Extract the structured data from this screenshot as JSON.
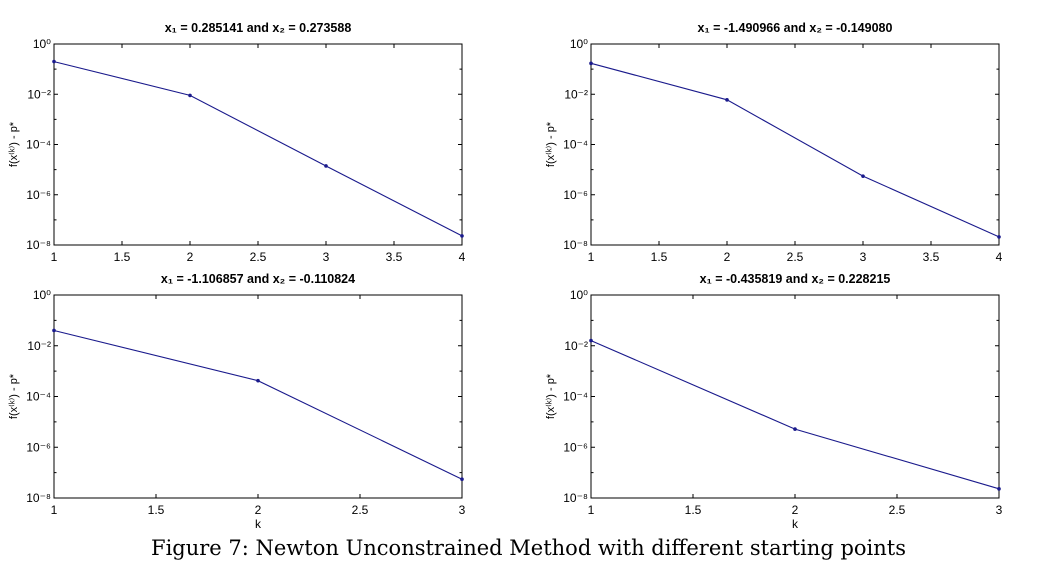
{
  "figure": {
    "caption": "Figure 7: Newton Unconstrained Method with different starting points"
  },
  "chart_data": [
    {
      "type": "line",
      "title": "x₁ = 0.285141 and x₂ = 0.273588",
      "xlabel": "",
      "ylabel": "f(x⁽ᵏ⁾) - p*",
      "yscale": "log",
      "xlim": [
        1,
        4
      ],
      "ylim": [
        1e-08,
        1
      ],
      "xticks": [
        "1",
        "1.5",
        "2",
        "2.5",
        "3",
        "3.5",
        "4"
      ],
      "yticks": [
        "10⁰",
        "10⁻²",
        "10⁻⁴",
        "10⁻⁶",
        "10⁻⁸"
      ],
      "color": "#1a1a8c",
      "x": [
        1,
        2,
        3,
        4
      ],
      "y": [
        0.2,
        0.009,
        1.4e-05,
        2.3e-08
      ]
    },
    {
      "type": "line",
      "title": "x₁ = -1.490966 and x₂ = -0.149080",
      "xlabel": "",
      "ylabel": "f(x⁽ᵏ⁾) - p*",
      "yscale": "log",
      "xlim": [
        1,
        4
      ],
      "ylim": [
        1e-08,
        1
      ],
      "xticks": [
        "1",
        "1.5",
        "2",
        "2.5",
        "3",
        "3.5",
        "4"
      ],
      "yticks": [
        "10⁰",
        "10⁻²",
        "10⁻⁴",
        "10⁻⁶",
        "10⁻⁸"
      ],
      "color": "#1a1a8c",
      "x": [
        1,
        2,
        3,
        4
      ],
      "y": [
        0.17,
        0.006,
        5.5e-06,
        2.1e-08
      ]
    },
    {
      "type": "line",
      "title": "x₁ = -1.106857 and x₂ = -0.110824",
      "xlabel": "k",
      "ylabel": "f(x⁽ᵏ⁾) - p*",
      "yscale": "log",
      "xlim": [
        1,
        3
      ],
      "ylim": [
        1e-08,
        1
      ],
      "xticks": [
        "1",
        "1.5",
        "2",
        "2.5",
        "3"
      ],
      "yticks": [
        "10⁰",
        "10⁻²",
        "10⁻⁴",
        "10⁻⁶",
        "10⁻⁸"
      ],
      "color": "#1a1a8c",
      "x": [
        1,
        2,
        3
      ],
      "y": [
        0.04,
        0.00042,
        5.5e-08
      ]
    },
    {
      "type": "line",
      "title": "x₁ = -0.435819 and x₂ = 0.228215",
      "xlabel": "k",
      "ylabel": "f(x⁽ᵏ⁾) - p*",
      "yscale": "log",
      "xlim": [
        1,
        3
      ],
      "ylim": [
        1e-08,
        1
      ],
      "xticks": [
        "1",
        "1.5",
        "2",
        "2.5",
        "3"
      ],
      "yticks": [
        "10⁰",
        "10⁻²",
        "10⁻⁴",
        "10⁻⁶",
        "10⁻⁸"
      ],
      "color": "#1a1a8c",
      "x": [
        1,
        2,
        3
      ],
      "y": [
        0.016,
        5.2e-06,
        2.3e-08
      ]
    }
  ]
}
